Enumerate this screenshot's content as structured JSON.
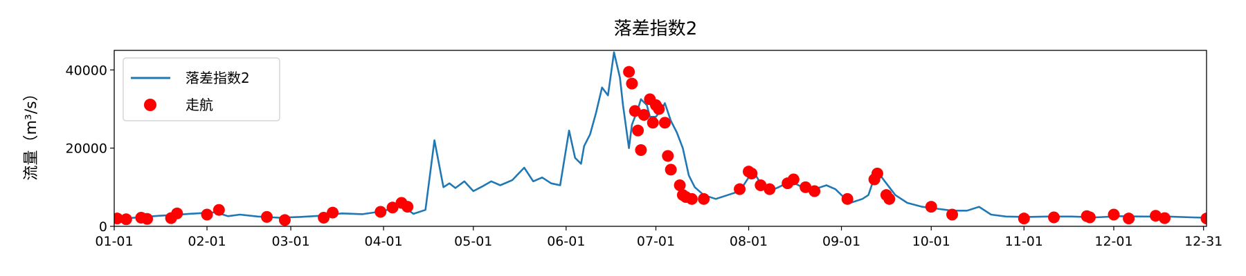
{
  "chart_data": {
    "type": "line",
    "title": "落差指数2",
    "xlabel": "",
    "ylabel": "流量（m³/s）",
    "x_ticks": [
      "01-01",
      "02-01",
      "03-01",
      "04-01",
      "05-01",
      "06-01",
      "07-01",
      "08-01",
      "09-01",
      "10-01",
      "11-01",
      "12-01",
      "12-31"
    ],
    "x_tick_days": [
      0,
      31,
      59,
      90,
      120,
      151,
      181,
      212,
      243,
      273,
      304,
      334,
      364
    ],
    "xlim": [
      0,
      365
    ],
    "y_ticks": [
      0,
      20000,
      40000
    ],
    "ylim": [
      0,
      45000
    ],
    "grid": false,
    "legend_position": "upper-left",
    "series": [
      {
        "name": "落差指数2",
        "kind": "line",
        "color": "#1f77b4",
        "x": [
          0,
          5,
          10,
          15,
          20,
          25,
          30,
          34,
          38,
          42,
          48,
          55,
          62,
          69,
          76,
          83,
          90,
          96,
          100,
          104,
          107,
          110,
          112,
          114,
          117,
          120,
          123,
          126,
          129,
          133,
          137,
          140,
          143,
          146,
          149,
          152,
          154,
          156,
          157,
          159,
          161,
          163,
          165,
          167,
          169,
          170,
          172,
          173,
          175,
          176,
          178,
          179,
          181,
          183,
          184,
          186,
          188,
          190,
          192,
          194,
          197,
          201,
          205,
          209,
          212,
          214,
          216,
          219,
          222,
          226,
          230,
          234,
          238,
          241,
          243,
          246,
          250,
          252,
          254,
          256,
          258,
          261,
          265,
          270,
          275,
          280,
          283,
          285,
          289,
          293,
          298,
          305,
          312,
          320,
          328,
          336,
          344,
          352,
          360,
          364
        ],
        "y": [
          2000,
          2100,
          2400,
          2700,
          2900,
          3200,
          3400,
          3600,
          2600,
          3000,
          2500,
          2200,
          2400,
          2700,
          3300,
          3100,
          3900,
          5400,
          3200,
          4200,
          22000,
          10000,
          11000,
          9800,
          11500,
          9000,
          10200,
          11500,
          10500,
          11800,
          15000,
          11500,
          12500,
          11000,
          10500,
          24500,
          17500,
          16000,
          20500,
          23500,
          29000,
          35500,
          33500,
          44500,
          38000,
          31000,
          20000,
          26000,
          30000,
          32500,
          31000,
          28000,
          28000,
          30000,
          31500,
          27000,
          24000,
          20000,
          13000,
          10000,
          8000,
          7000,
          8000,
          9000,
          12500,
          13500,
          11000,
          9000,
          10000,
          11500,
          10000,
          9500,
          10500,
          9500,
          8000,
          6000,
          7000,
          8000,
          12500,
          13000,
          11000,
          8000,
          6000,
          5000,
          4500,
          4000,
          4000,
          4000,
          5000,
          3000,
          2500,
          2400,
          2500,
          2500,
          2300,
          2600,
          2500,
          2500,
          2300,
          2200
        ]
      },
      {
        "name": "走航",
        "kind": "scatter",
        "color": "#ff0000",
        "x": [
          1,
          4,
          9,
          11,
          19,
          21,
          31,
          35,
          51,
          57,
          70,
          73,
          89,
          93,
          96,
          98,
          172,
          173,
          174,
          175,
          176,
          177,
          179,
          180,
          181,
          182,
          184,
          185,
          186,
          189,
          190,
          191,
          193,
          197,
          209,
          212,
          213,
          216,
          219,
          225,
          227,
          231,
          234,
          245,
          254,
          255,
          258,
          259,
          273,
          280,
          304,
          314,
          325,
          326,
          334,
          339,
          348,
          351,
          365
        ],
        "y": [
          2000,
          1800,
          2200,
          1900,
          2100,
          3300,
          3000,
          4200,
          2400,
          1600,
          2200,
          3500,
          3700,
          4800,
          6000,
          5000,
          39500,
          36500,
          29500,
          24500,
          19500,
          28500,
          32500,
          26500,
          31000,
          30000,
          26500,
          18000,
          14500,
          10500,
          8000,
          7500,
          7000,
          7000,
          9500,
          14000,
          13500,
          10500,
          9500,
          11000,
          12000,
          10000,
          9000,
          7000,
          12000,
          13500,
          8000,
          7000,
          5000,
          3000,
          2000,
          2300,
          2600,
          2300,
          3000,
          2000,
          2700,
          2100,
          2000
        ]
      }
    ]
  }
}
